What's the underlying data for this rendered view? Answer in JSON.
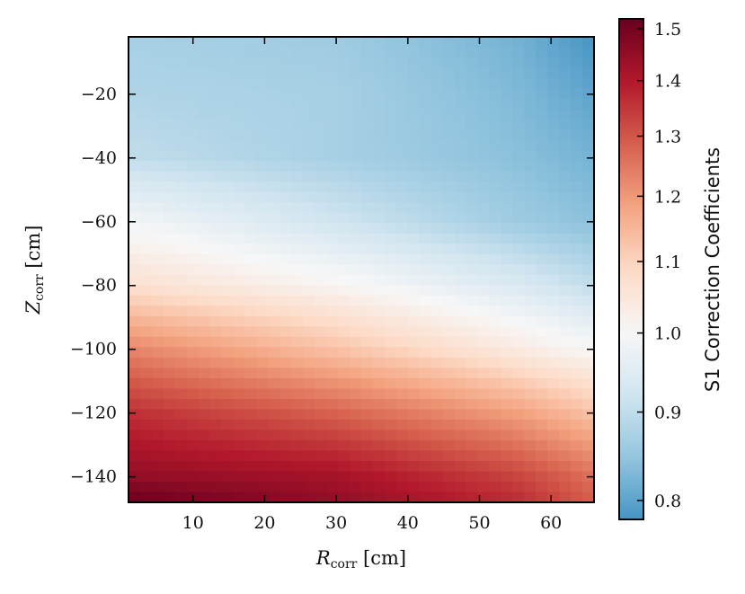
{
  "chart_data": {
    "type": "heatmap",
    "title": "",
    "xlabel": "R",
    "xlabel_sub": "corr",
    "xlabel_unit": " [cm]",
    "ylabel": "Z",
    "ylabel_sub": "corr",
    "ylabel_unit": " [cm]",
    "xlim": [
      1,
      66
    ],
    "ylim": [
      -148,
      -2
    ],
    "x_ticks": [
      10,
      20,
      30,
      40,
      50,
      60
    ],
    "y_ticks": [
      -20,
      -40,
      -60,
      -80,
      -100,
      -120,
      -140
    ],
    "x_tick_labels": [
      "10",
      "20",
      "30",
      "40",
      "50",
      "60"
    ],
    "y_tick_labels": [
      "−20",
      "−40",
      "−60",
      "−80",
      "−100",
      "−120",
      "−140"
    ],
    "colormap": "RdBu_r",
    "color_scale": "log",
    "colorbar": {
      "label": "S1 Correction Coefficients",
      "range": [
        0.78,
        1.52
      ],
      "ticks": [
        1.5,
        1.4,
        1.3,
        1.2,
        1.1,
        1.0,
        0.9,
        0.8
      ],
      "tick_labels": [
        "1.5",
        "1.4",
        "1.3",
        "1.2",
        "1.1",
        "1.0",
        "0.9",
        "0.8"
      ],
      "position": "right"
    },
    "grid": false,
    "field_description": "coefficient increases with depth (more negative Z); drop is stronger at large R",
    "sample_values": {
      "Z_points": [
        -2,
        -20,
        -40,
        -60,
        -80,
        -100,
        -120,
        -140,
        -148
      ],
      "R_points": [
        1,
        30,
        55,
        66
      ],
      "values": [
        [
          0.87,
          0.86,
          0.82,
          0.78
        ],
        [
          0.88,
          0.87,
          0.83,
          0.8
        ],
        [
          0.9,
          0.87,
          0.84,
          0.82
        ],
        [
          0.99,
          0.92,
          0.86,
          0.84
        ],
        [
          1.07,
          1.01,
          0.94,
          0.9
        ],
        [
          1.23,
          1.13,
          1.04,
          1.0
        ],
        [
          1.36,
          1.28,
          1.19,
          1.13
        ],
        [
          1.45,
          1.42,
          1.33,
          1.26
        ],
        [
          1.52,
          1.45,
          1.37,
          1.29
        ]
      ]
    }
  }
}
